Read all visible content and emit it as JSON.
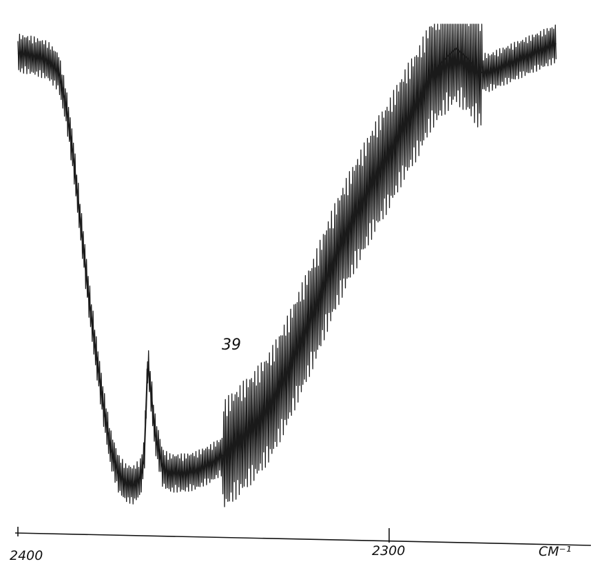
{
  "chart_data": {
    "type": "line",
    "title": "",
    "xlabel": "",
    "ylabel": "",
    "x_unit": "CM⁻¹",
    "x_reversed": true,
    "xlim": [
      2400,
      2250
    ],
    "ylim": [
      0,
      100
    ],
    "y_axis_visible": false,
    "grid": false,
    "x_ticks": [
      {
        "value": 2400,
        "label": "2400"
      },
      {
        "value": 2300,
        "label": "2300"
      }
    ],
    "annotations": [
      {
        "text": "39",
        "x": 2366,
        "y": 30
      }
    ],
    "series": [
      {
        "x": [
          2400,
          2396,
          2392,
          2389,
          2387,
          2385,
          2383,
          2381,
          2379,
          2377,
          2375,
          2373,
          2371,
          2369,
          2367,
          2366,
          2365,
          2363,
          2361,
          2359,
          2357,
          2355,
          2352,
          2348,
          2344,
          2340,
          2336,
          2332,
          2328,
          2324,
          2320,
          2316,
          2312,
          2308,
          2304,
          2300,
          2296,
          2292,
          2289,
          2286,
          2282,
          2279,
          2276,
          2273,
          2270,
          2267,
          2264,
          2261,
          2258,
          2255
        ],
        "y": [
          94,
          93.5,
          92.5,
          90,
          83,
          72,
          58,
          44,
          32,
          21,
          12,
          7,
          5,
          4.5,
          6,
          10,
          30,
          15,
          8,
          7,
          7,
          7,
          7.5,
          9,
          11,
          14,
          17,
          21,
          27,
          34,
          41,
          49,
          56,
          62,
          68,
          73,
          79,
          84,
          89,
          92,
          95,
          93,
          90,
          90,
          91,
          92,
          93,
          94,
          95,
          96
        ],
        "oscillation": 5
      }
    ]
  }
}
